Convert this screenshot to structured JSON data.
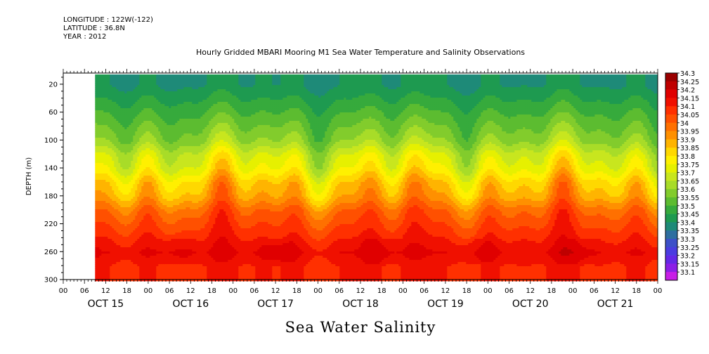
{
  "header": {
    "longitude": "LONGITUDE : 122W(-122)",
    "latitude": "LATITUDE : 36.8N",
    "year": "YEAR : 2012"
  },
  "chart_data": {
    "type": "heatmap",
    "title": "Hourly Gridded MBARI Mooring M1 Sea Water Temperature and Salinity Observations",
    "bottom_title": "Sea Water Salinity",
    "ylabel": "DEPTH (m)",
    "ylim": [
      300,
      4
    ],
    "y_ticks": [
      20,
      60,
      100,
      140,
      180,
      220,
      260,
      300
    ],
    "x_days": [
      "OCT 15",
      "OCT 16",
      "OCT 17",
      "OCT 18",
      "OCT 19",
      "OCT 20",
      "OCT 21"
    ],
    "x_hour_labels": [
      "00",
      "06",
      "12",
      "18",
      "00",
      "06",
      "12",
      "18",
      "00",
      "06",
      "12",
      "18",
      "00",
      "06",
      "12",
      "18",
      "00",
      "06",
      "12",
      "18",
      "00",
      "06",
      "12",
      "18",
      "00",
      "06",
      "12",
      "18",
      "00"
    ],
    "data_start": "2012-10-15 09:00",
    "colorbar": {
      "levels": [
        34.3,
        34.25,
        34.2,
        34.15,
        34.1,
        34.05,
        34,
        33.95,
        33.9,
        33.85,
        33.8,
        33.75,
        33.7,
        33.65,
        33.6,
        33.55,
        33.5,
        33.45,
        33.4,
        33.35,
        33.3,
        33.25,
        33.2,
        33.15,
        33.1
      ],
      "colors": [
        "#9a0000",
        "#bf0000",
        "#e00000",
        "#f01000",
        "#ff3000",
        "#ff5000",
        "#ff7000",
        "#ff9000",
        "#ffb400",
        "#ffd800",
        "#fff000",
        "#e6f000",
        "#c8e61e",
        "#a8dc28",
        "#82cc2c",
        "#5cbc30",
        "#36aa3c",
        "#1e9a50",
        "#1e8a78",
        "#2e6ea0",
        "#3c50c8",
        "#4a3ce0",
        "#6428e6",
        "#8c1ee6",
        "#c81ee6"
      ]
    },
    "profile": {
      "depths": [
        4,
        10,
        20,
        40,
        60,
        80,
        100,
        120,
        140,
        160,
        180,
        200,
        220,
        240,
        260,
        280,
        300
      ],
      "salinity": [
        33.45,
        33.45,
        33.45,
        33.5,
        33.55,
        33.6,
        33.65,
        33.75,
        33.8,
        33.9,
        33.95,
        34.05,
        34.1,
        34.15,
        34.2,
        34.15,
        34.15
      ]
    }
  }
}
